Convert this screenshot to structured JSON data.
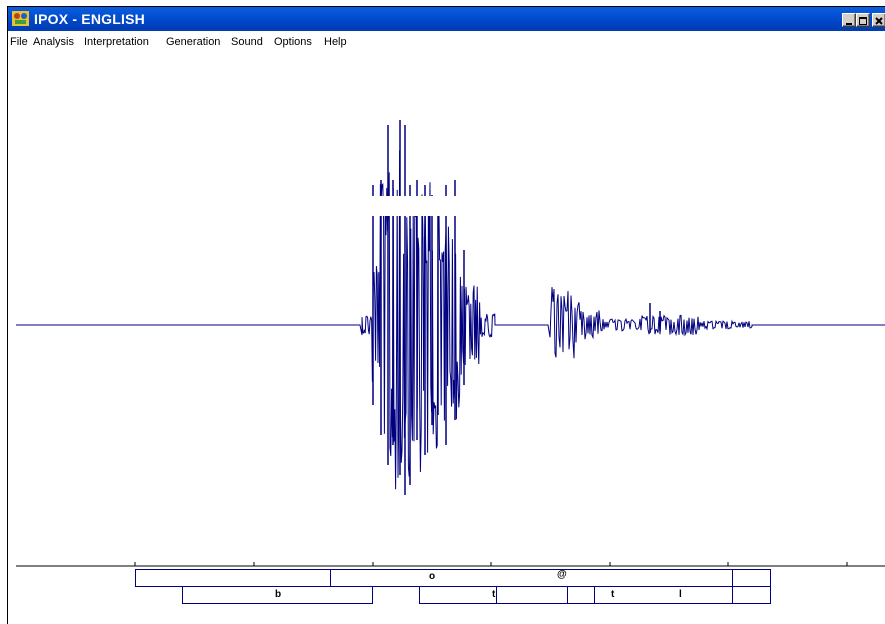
{
  "window": {
    "title": "IPOX - ENGLISH",
    "colors": {
      "titlebar": "#0054e3",
      "waveform": "#000080",
      "background": "#ffffff"
    }
  },
  "caption_buttons": [
    "minimize",
    "maximize",
    "close"
  ],
  "menu": {
    "items": [
      {
        "label": "File"
      },
      {
        "label": "Analysis"
      },
      {
        "label": "Interpretation"
      },
      {
        "label": "Generation"
      },
      {
        "label": "Sound"
      },
      {
        "label": "Options"
      },
      {
        "label": "Help"
      }
    ]
  },
  "segments": {
    "top_row": [
      "o",
      "@"
    ],
    "bottom_row": [
      "b",
      "t",
      "t",
      "l"
    ]
  }
}
